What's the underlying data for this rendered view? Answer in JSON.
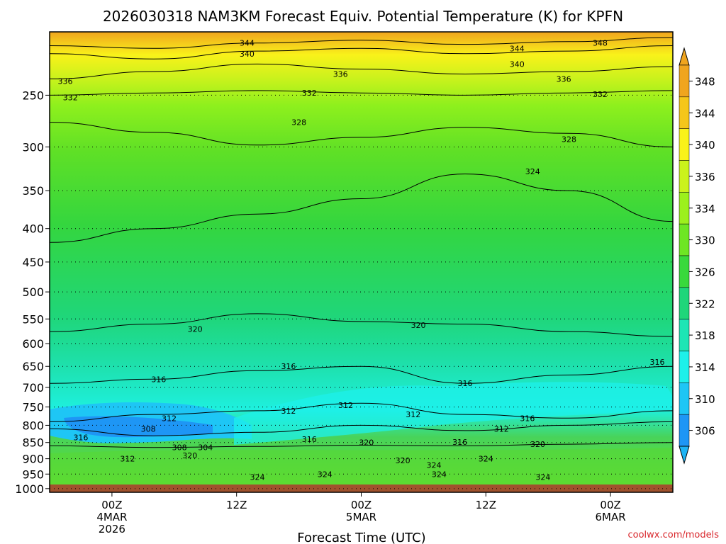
{
  "chart_data": {
    "type": "heatmap",
    "title": "2026030318 NAM3KM Forecast Equiv. Potential Temperature (K) for KPFN",
    "xlabel": "Forecast Time (UTC)",
    "ylabel": "",
    "y_ticks": [
      250,
      300,
      350,
      400,
      450,
      500,
      550,
      600,
      650,
      700,
      750,
      800,
      850,
      900,
      950,
      1000
    ],
    "y_range_hPa": [
      1013,
      200
    ],
    "y_scale": "log",
    "x_range_hours": [
      -6,
      54
    ],
    "x_ticks": [
      {
        "hour": 0,
        "line1": "00Z",
        "line2": "4MAR",
        "line3": "2026"
      },
      {
        "hour": 12,
        "line1": "12Z",
        "line2": "",
        "line3": ""
      },
      {
        "hour": 24,
        "line1": "00Z",
        "line2": "5MAR",
        "line3": ""
      },
      {
        "hour": 36,
        "line1": "12Z",
        "line2": "",
        "line3": ""
      },
      {
        "hour": 48,
        "line1": "00Z",
        "line2": "6MAR",
        "line3": ""
      }
    ],
    "colorbar": {
      "labels": [
        348,
        344,
        340,
        336,
        334,
        330,
        326,
        322,
        318,
        314,
        310,
        306
      ],
      "colors": [
        "#f0a51e",
        "#f5c61a",
        "#f9f21a",
        "#cbf21c",
        "#9cf01d",
        "#6ee623",
        "#39d93c",
        "#1fd67a",
        "#1ee5b5",
        "#1ef0ea",
        "#1ec6f5",
        "#1e96f5"
      ]
    },
    "contour_interval_K": 4,
    "contours": [
      {
        "value": 344,
        "pressure_hPa": [
          210,
          212,
          208,
          206,
          209,
          207,
          204
        ]
      },
      {
        "value": 340,
        "pressure_hPa": [
          216,
          220,
          214,
          212,
          216,
          214,
          210
        ]
      },
      {
        "value": 336,
        "pressure_hPa": [
          236,
          230,
          224,
          228,
          232,
          230,
          226
        ]
      },
      {
        "value": 332,
        "pressure_hPa": [
          250,
          248,
          246,
          248,
          250,
          248,
          246
        ]
      },
      {
        "value": 328,
        "pressure_hPa": [
          275,
          285,
          298,
          290,
          280,
          286,
          300
        ]
      },
      {
        "value": 324,
        "pressure_hPa": [
          420,
          400,
          380,
          360,
          330,
          350,
          390
        ]
      },
      {
        "value": 320,
        "pressure_hPa": [
          575,
          560,
          540,
          555,
          560,
          575,
          585
        ]
      },
      {
        "value": 316,
        "pressure_hPa": [
          690,
          680,
          660,
          650,
          690,
          670,
          650
        ]
      },
      {
        "value": 312,
        "pressure_hPa": [
          790,
          770,
          760,
          740,
          770,
          780,
          760
        ]
      },
      {
        "value": 308,
        "pressure_hPa": [
          810,
          830,
          820,
          800,
          815,
          800,
          790
        ]
      },
      {
        "value": 304,
        "pressure_hPa": [
          860,
          865,
          862,
          858,
          860,
          855,
          850
        ]
      }
    ],
    "contour_labels": [
      {
        "value": "344",
        "hour": 13,
        "p": 208
      },
      {
        "value": "344",
        "hour": 39,
        "p": 212
      },
      {
        "value": "348",
        "hour": 47,
        "p": 208
      },
      {
        "value": "340",
        "hour": 13,
        "p": 216
      },
      {
        "value": "340",
        "hour": 39,
        "p": 224
      },
      {
        "value": "336",
        "hour": -4.5,
        "p": 238
      },
      {
        "value": "336",
        "hour": 22,
        "p": 232
      },
      {
        "value": "336",
        "hour": 43.5,
        "p": 236
      },
      {
        "value": "332",
        "hour": -4,
        "p": 252
      },
      {
        "value": "332",
        "hour": 19,
        "p": 248
      },
      {
        "value": "332",
        "hour": 47,
        "p": 249
      },
      {
        "value": "328",
        "hour": 18,
        "p": 275
      },
      {
        "value": "328",
        "hour": 44,
        "p": 292
      },
      {
        "value": "324",
        "hour": 40.5,
        "p": 327
      },
      {
        "value": "324",
        "hour": 20.5,
        "p": 950
      },
      {
        "value": "324",
        "hour": 31.5,
        "p": 950
      },
      {
        "value": "320",
        "hour": 8,
        "p": 570
      },
      {
        "value": "320",
        "hour": 29.5,
        "p": 562
      },
      {
        "value": "320",
        "hour": 41,
        "p": 855
      },
      {
        "value": "316",
        "hour": 4.5,
        "p": 680
      },
      {
        "value": "316",
        "hour": 17,
        "p": 650
      },
      {
        "value": "316",
        "hour": 34,
        "p": 690
      },
      {
        "value": "316",
        "hour": 52.5,
        "p": 640
      },
      {
        "value": "316",
        "hour": 40,
        "p": 780
      },
      {
        "value": "316",
        "hour": 19,
        "p": 840
      },
      {
        "value": "312",
        "hour": 5.5,
        "p": 780
      },
      {
        "value": "312",
        "hour": 17,
        "p": 760
      },
      {
        "value": "312",
        "hour": 22.5,
        "p": 745
      },
      {
        "value": "312",
        "hour": 29,
        "p": 770
      },
      {
        "value": "312",
        "hour": 37.5,
        "p": 810
      },
      {
        "value": "312",
        "hour": 1.5,
        "p": 900
      },
      {
        "value": "308",
        "hour": 3.5,
        "p": 810
      },
      {
        "value": "308",
        "hour": 6.5,
        "p": 865
      },
      {
        "value": "304",
        "hour": 9,
        "p": 865
      },
      {
        "value": "320",
        "hour": 7.5,
        "p": 890
      },
      {
        "value": "320",
        "hour": 24.5,
        "p": 850
      },
      {
        "value": "316",
        "hour": -3,
        "p": 835
      },
      {
        "value": "316",
        "hour": 33.5,
        "p": 848
      },
      {
        "value": "320",
        "hour": 28,
        "p": 905
      },
      {
        "value": "324",
        "hour": 36,
        "p": 900
      },
      {
        "value": "324",
        "hour": 31,
        "p": 920
      },
      {
        "value": "324",
        "hour": 14,
        "p": 960
      },
      {
        "value": "324",
        "hour": 41.5,
        "p": 960
      }
    ]
  },
  "credit": "coolwx.com/models"
}
